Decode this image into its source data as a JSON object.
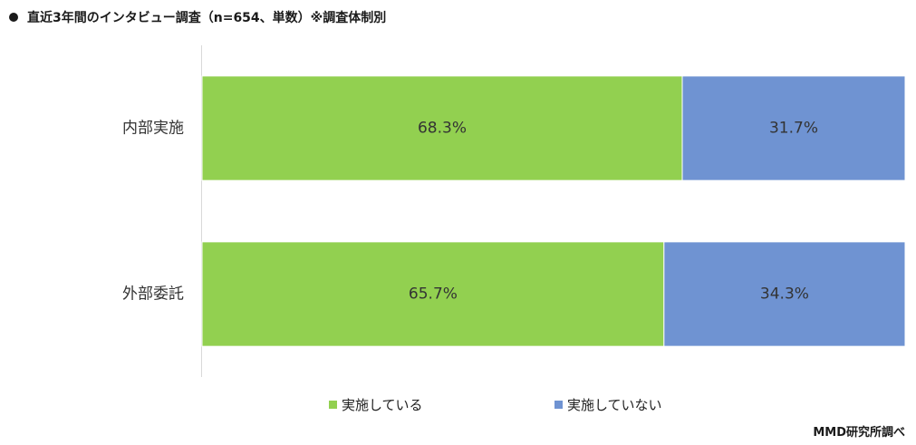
{
  "title": "直近3年間のインタビュー調査（n=654、単数）※調査体制別",
  "source": "MMD研究所調べ",
  "colors": {
    "series_0": "#92d050",
    "series_1": "#6f93d2",
    "axis": "#d9d9d9"
  },
  "chart_data": {
    "type": "bar",
    "orientation": "horizontal",
    "stacked": "percent",
    "title": "直近3年間のインタビュー調査（n=654、単数）※調査体制別",
    "categories": [
      "内部実施",
      "外部委託"
    ],
    "series": [
      {
        "name": "実施している",
        "values": [
          68.3,
          65.7
        ]
      },
      {
        "name": "実施していない",
        "values": [
          31.7,
          34.3
        ]
      }
    ],
    "data_labels": [
      [
        "68.3%",
        "65.7%"
      ],
      [
        "31.7%",
        "34.3%"
      ]
    ],
    "xlim": [
      0,
      100
    ],
    "grid": false,
    "legend": "bottom"
  }
}
